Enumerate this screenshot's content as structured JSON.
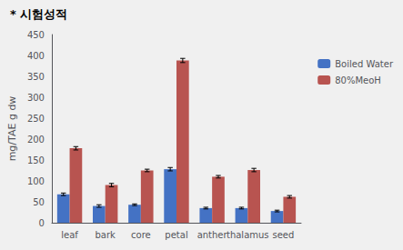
{
  "chart_data": {
    "type": "bar",
    "title": "* 시험성적",
    "categories": [
      "leaf",
      "bark",
      "core",
      "petal",
      "anther",
      "thalamus",
      "seed"
    ],
    "series": [
      {
        "name": "Boiled Water",
        "color": "#4472C4",
        "values": [
          68,
          40,
          43,
          128,
          35,
          35,
          28
        ],
        "errors": [
          3,
          3,
          2,
          4,
          2,
          2,
          2
        ]
      },
      {
        "name": "80%MeoH",
        "color": "#B85450",
        "values": [
          178,
          90,
          125,
          388,
          110,
          126,
          62
        ],
        "errors": [
          4,
          4,
          3,
          5,
          3,
          4,
          3
        ]
      }
    ],
    "ylabel": "mg/TAE g dw",
    "ylim": [
      0,
      450
    ],
    "yticks": [
      0,
      50,
      100,
      150,
      200,
      250,
      300,
      350,
      400,
      450
    ],
    "grid": false,
    "legend": "right"
  }
}
